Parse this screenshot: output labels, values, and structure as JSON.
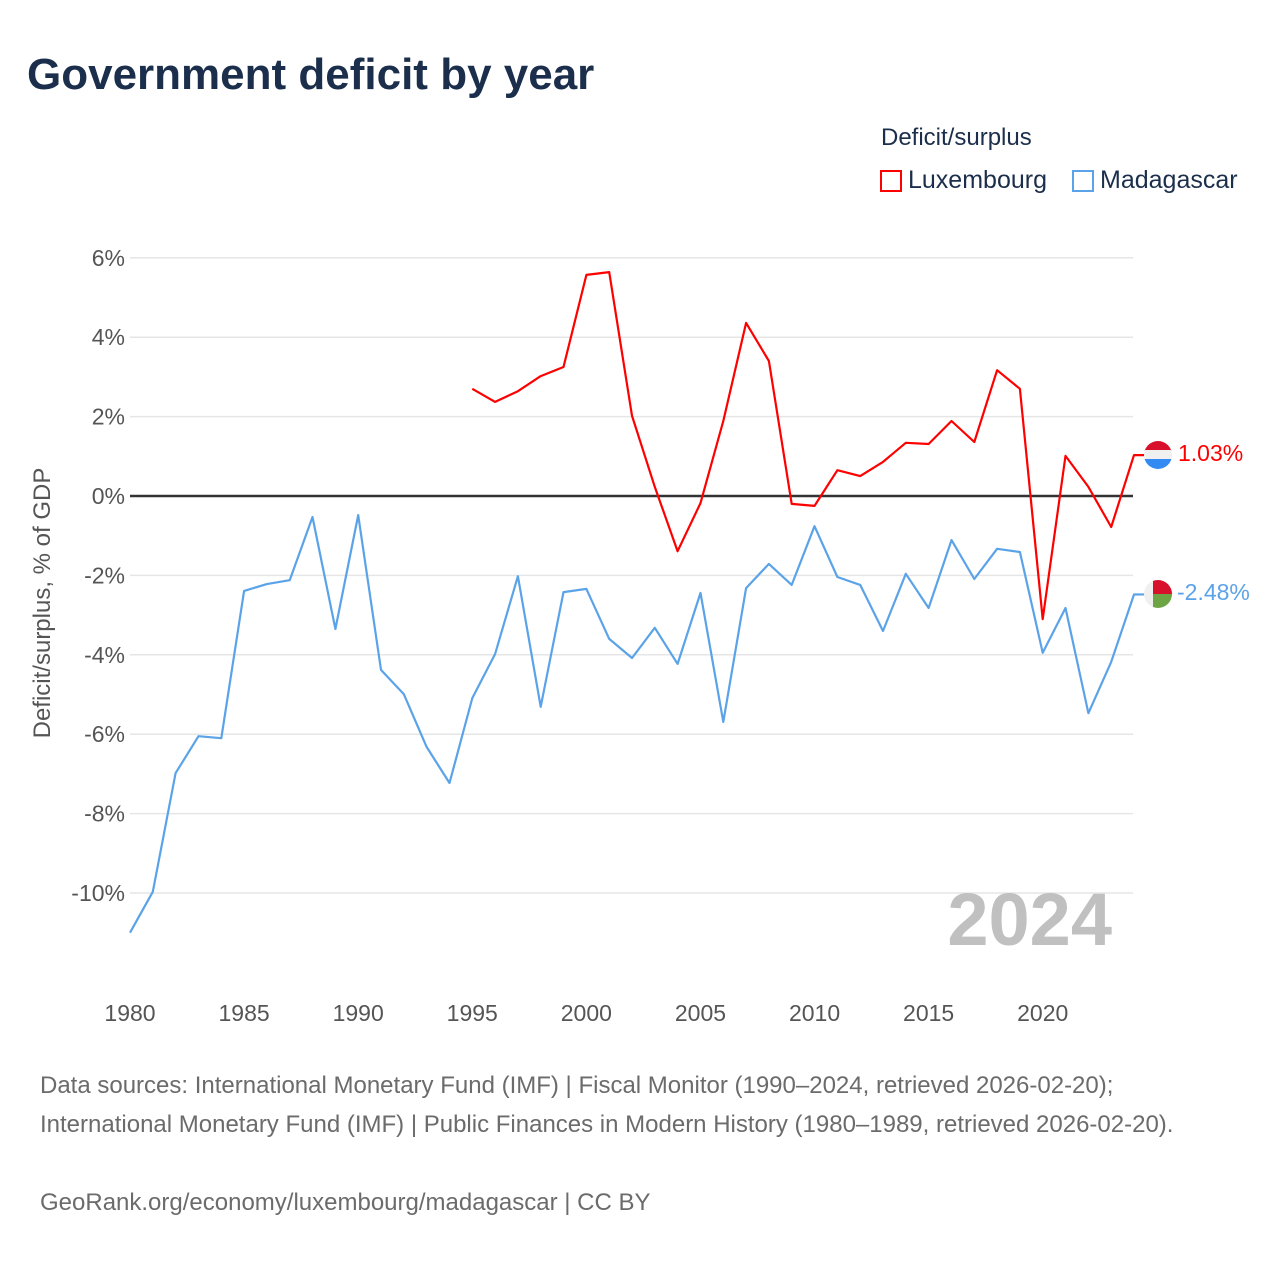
{
  "title": "Government deficit by year",
  "legend": {
    "title": "Deficit/surplus",
    "items": [
      {
        "name": "Luxembourg",
        "color": "#ff0000"
      },
      {
        "name": "Madagascar",
        "color": "#5ba3e8"
      }
    ]
  },
  "year_watermark": "2024",
  "end_labels": {
    "luxembourg": "1.03%",
    "madagascar": "-2.48%"
  },
  "footer": {
    "sources": "Data sources: International Monetary Fund (IMF) | Fiscal Monitor (1990–2024, retrieved 2026-02-20); International Monetary Fund (IMF) | Public Finances in Modern History (1980–1989, retrieved 2026-02-20).",
    "credit": "GeoRank.org/economy/luxembourg/madagascar | CC BY"
  },
  "chart_data": {
    "type": "line",
    "title": "Government deficit by year",
    "xlabel": "",
    "ylabel": "Deficit/surplus, % of GDP",
    "xlim": [
      1980,
      2024
    ],
    "ylim": [
      -11,
      6
    ],
    "x_ticks": [
      1980,
      1985,
      1990,
      1995,
      2000,
      2005,
      2010,
      2015,
      2020
    ],
    "y_ticks": [
      6,
      4,
      2,
      0,
      -2,
      -4,
      -6,
      -8,
      -10
    ],
    "y_tick_labels": [
      "6%",
      "4%",
      "2%",
      "0%",
      "-2%",
      "-4%",
      "-6%",
      "-8%",
      "-10%"
    ],
    "grid": true,
    "legend_position": "top-right",
    "series": [
      {
        "name": "Luxembourg",
        "color": "#ff0000",
        "start_year": 1995,
        "values": [
          2.7,
          2.37,
          2.64,
          3.02,
          3.25,
          5.57,
          5.64,
          2.02,
          0.23,
          -1.39,
          -0.18,
          1.89,
          4.36,
          3.4,
          -0.2,
          -0.25,
          0.65,
          0.5,
          0.86,
          1.34,
          1.31,
          1.89,
          1.36,
          3.17,
          2.7,
          -3.1,
          1.01,
          0.23,
          -0.78,
          1.03
        ]
      },
      {
        "name": "Madagascar",
        "color": "#5ba3e8",
        "start_year": 1980,
        "values": [
          -11.0,
          -9.97,
          -6.98,
          -6.05,
          -6.1,
          -2.39,
          -2.22,
          -2.12,
          -0.53,
          -3.35,
          -0.48,
          -4.38,
          -4.99,
          -6.32,
          -7.23,
          -5.09,
          -3.98,
          -2.02,
          -5.31,
          -2.42,
          -2.34,
          -3.6,
          -4.08,
          -3.32,
          -4.23,
          -2.44,
          -5.69,
          -2.32,
          -1.71,
          -2.24,
          -0.76,
          -2.04,
          -2.24,
          -3.4,
          -1.96,
          -2.82,
          -1.11,
          -2.09,
          -1.33,
          -1.41,
          -3.95,
          -2.82,
          -5.47,
          -4.18,
          -2.48
        ]
      }
    ]
  }
}
